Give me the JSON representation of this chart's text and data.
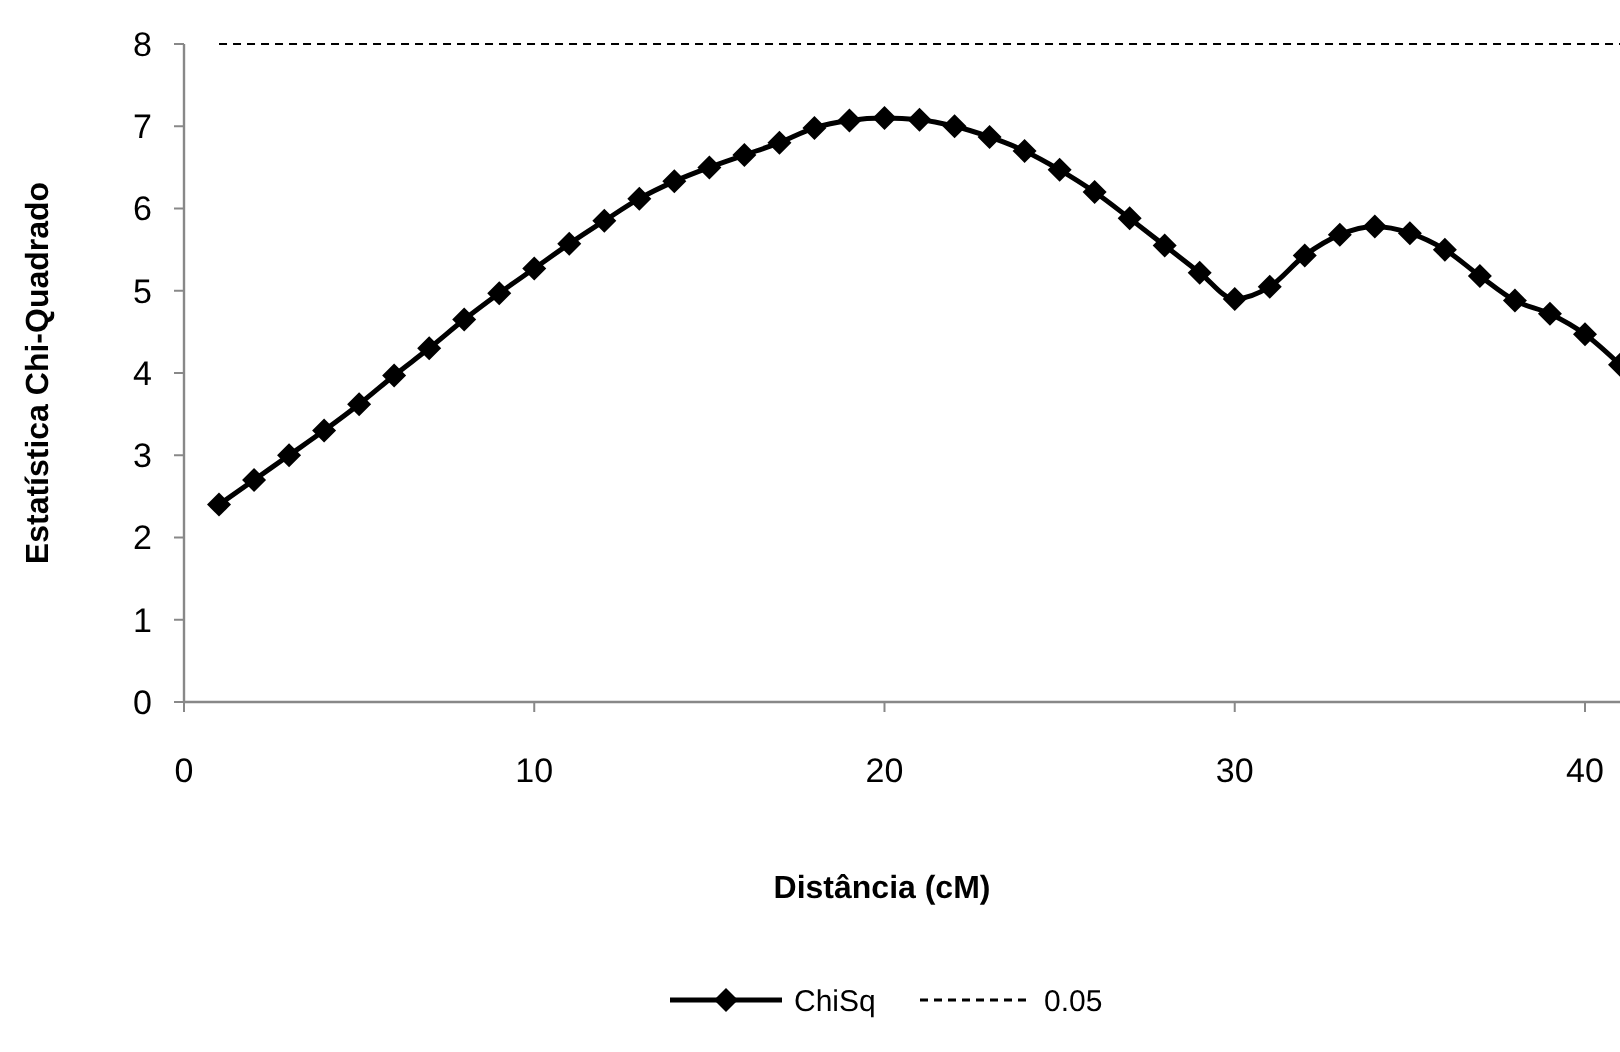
{
  "chart_data": {
    "type": "line",
    "xlabel": "Distância (cM)",
    "ylabel": "Estatística Chi-Quadrado",
    "xlim": [
      0,
      41
    ],
    "xticks": [
      0,
      10,
      20,
      30,
      40
    ],
    "ylim": [
      0,
      8
    ],
    "yticks": [
      0,
      1,
      2,
      3,
      4,
      5,
      6,
      7,
      8
    ],
    "grid": false,
    "legend": "bottom",
    "x": [
      1,
      2,
      3,
      4,
      5,
      6,
      7,
      8,
      9,
      10,
      11,
      12,
      13,
      14,
      15,
      16,
      17,
      18,
      19,
      20,
      21,
      22,
      23,
      24,
      25,
      26,
      27,
      28,
      29,
      30,
      31,
      32,
      33,
      34,
      35,
      36,
      37,
      38,
      39,
      40,
      41
    ],
    "series": [
      {
        "name": "ChiSq",
        "color": "#000000",
        "marker": "diamond",
        "line_style": "solid",
        "values": [
          2.4,
          2.7,
          3.0,
          3.3,
          3.62,
          3.97,
          4.3,
          4.65,
          4.97,
          5.27,
          5.57,
          5.85,
          6.12,
          6.33,
          6.5,
          6.65,
          6.8,
          6.98,
          7.07,
          7.1,
          7.08,
          7.0,
          6.87,
          6.7,
          6.47,
          6.2,
          5.88,
          5.55,
          5.22,
          4.9,
          5.05,
          5.43,
          5.68,
          5.78,
          5.7,
          5.5,
          5.18,
          4.88,
          4.72,
          4.47,
          4.1
        ]
      },
      {
        "name": "0.05",
        "color": "#000000",
        "marker": "none",
        "line_style": "dashed",
        "x": [
          1,
          41
        ],
        "values": [
          8,
          8
        ]
      }
    ]
  }
}
